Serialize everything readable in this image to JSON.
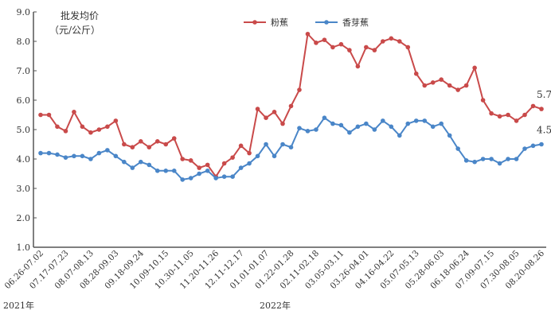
{
  "chart_data": {
    "type": "line",
    "ylabel_line1": "批发均价",
    "ylabel_line2": "（元/公斤）",
    "ylim": [
      1.0,
      9.0
    ],
    "yticks": [
      "1.0",
      "2.0",
      "3.0",
      "4.0",
      "5.0",
      "6.0",
      "7.0",
      "8.0",
      "9.0"
    ],
    "xtick_labels": [
      "06.26-07.02",
      "07.17-07.23",
      "08.07-08.13",
      "08.28-09.03",
      "09.18-09.24",
      "10.09-10.15",
      "10.30-11.05",
      "11.20-11.26",
      "12.11-12.17",
      "01.01-01.07",
      "01.22-01.28",
      "02.11-02.18",
      "03.05-03.11",
      "03.26-04.01",
      "04.16-04.22",
      "05.07-05.13",
      "05.28-06.03",
      "06.18-06.24",
      "07.09-07.15",
      "07.30-08.05",
      "08.20-08.26"
    ],
    "year_labels": [
      "2021年",
      "2022年"
    ],
    "legend_placement": "top-center",
    "grid": false,
    "series": [
      {
        "name": "粉蕉",
        "color": "#c94a4a",
        "end_label": "5.7",
        "values": [
          5.5,
          5.5,
          5.1,
          4.95,
          5.6,
          5.1,
          4.9,
          5.0,
          5.1,
          5.3,
          4.5,
          4.4,
          4.6,
          4.4,
          4.6,
          4.5,
          4.7,
          4.0,
          3.95,
          3.7,
          3.8,
          3.4,
          3.85,
          4.05,
          4.45,
          4.2,
          5.7,
          5.4,
          5.6,
          5.2,
          5.8,
          6.35,
          8.25,
          7.95,
          8.05,
          7.8,
          7.9,
          7.7,
          7.15,
          7.8,
          7.7,
          8.0,
          8.1,
          8.0,
          7.8,
          6.9,
          6.5,
          6.6,
          6.7,
          6.5,
          6.35,
          6.5,
          7.1,
          6.0,
          5.55,
          5.45,
          5.5,
          5.3,
          5.5,
          5.8,
          5.7
        ]
      },
      {
        "name": "香芽蕉",
        "color": "#4a86c8",
        "end_label": "4.5",
        "values": [
          4.2,
          4.2,
          4.15,
          4.05,
          4.1,
          4.1,
          4.0,
          4.2,
          4.3,
          4.1,
          3.9,
          3.7,
          3.9,
          3.8,
          3.6,
          3.6,
          3.6,
          3.3,
          3.35,
          3.5,
          3.6,
          3.35,
          3.4,
          3.4,
          3.7,
          3.85,
          4.1,
          4.5,
          4.1,
          4.5,
          4.4,
          5.05,
          4.95,
          5.0,
          5.4,
          5.2,
          5.15,
          4.9,
          5.1,
          5.2,
          5.0,
          5.3,
          5.1,
          4.8,
          5.2,
          5.3,
          5.3,
          5.1,
          5.2,
          4.8,
          4.35,
          3.95,
          3.9,
          4.0,
          4.0,
          3.85,
          4.0,
          4.0,
          4.35,
          4.45,
          4.5
        ]
      }
    ]
  }
}
